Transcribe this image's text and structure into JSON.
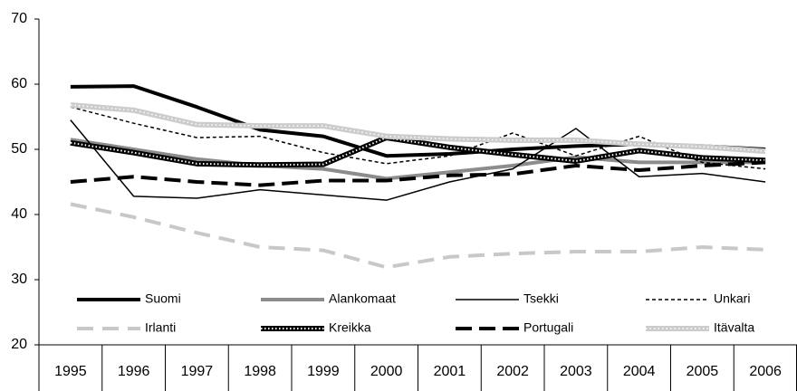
{
  "chart_data": {
    "type": "line",
    "categories": [
      "1995",
      "1996",
      "1997",
      "1998",
      "1999",
      "2000",
      "2001",
      "2002",
      "2003",
      "2004",
      "2005",
      "2006"
    ],
    "series": [
      {
        "name": "Suomi",
        "color": "#000000",
        "values": [
          59.6,
          59.7,
          56.5,
          53,
          52,
          49,
          49.3,
          50,
          50.5,
          50.8,
          50.5,
          50
        ]
      },
      {
        "name": "Alankomaat",
        "color": "#8c8c8c",
        "values": [
          51.5,
          50,
          48.5,
          47.5,
          47,
          45.5,
          46.5,
          47.5,
          48.8,
          48,
          48,
          48
        ]
      },
      {
        "name": "Tsekki",
        "color": "#000000",
        "values": [
          54.5,
          42.8,
          42.5,
          43.8,
          43,
          42.2,
          45,
          47,
          53.2,
          45.8,
          46.3,
          45
        ]
      },
      {
        "name": "Unkari",
        "color": "#000000",
        "values": [
          56.5,
          54,
          51.8,
          52,
          49.5,
          47.8,
          49,
          52.5,
          49,
          52,
          48,
          47
        ]
      },
      {
        "name": "Irlanti",
        "color": "#c8c8c8",
        "values": [
          41.6,
          39.6,
          37.2,
          35,
          34.5,
          31.9,
          33.5,
          34,
          34.3,
          34.3,
          35,
          34.6
        ]
      },
      {
        "name": "Kreikka",
        "color": "#000000",
        "values": [
          51,
          49.5,
          47.8,
          47.6,
          47.7,
          51.8,
          50.3,
          49.2,
          48.2,
          49.8,
          48.7,
          48.3
        ]
      },
      {
        "name": "Portugali",
        "color": "#000000",
        "values": [
          45,
          45.8,
          45,
          44.5,
          45.2,
          45.2,
          46,
          46.2,
          47.5,
          46.8,
          47.5,
          48
        ]
      },
      {
        "name": "Itävalta",
        "color": "#cccccc",
        "values": [
          56.8,
          56,
          53.8,
          53.6,
          53.6,
          52,
          51.6,
          51.4,
          51.4,
          50.8,
          50.4,
          49.7
        ]
      }
    ],
    "ylim": [
      20,
      70
    ],
    "yticks": [
      20,
      30,
      40,
      50,
      60,
      70
    ],
    "grid": false
  }
}
